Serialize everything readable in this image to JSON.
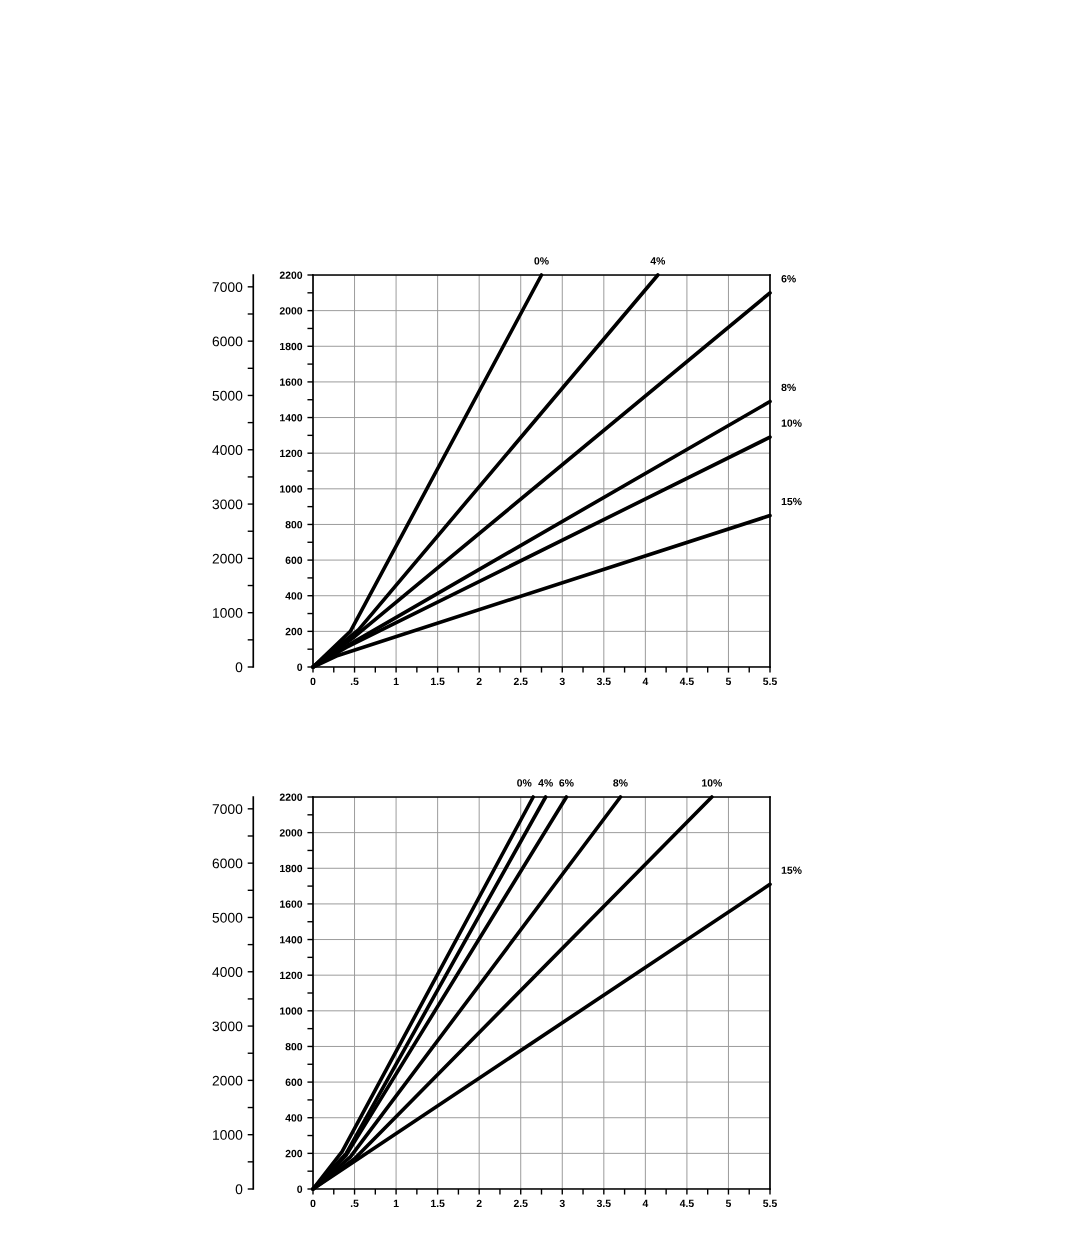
{
  "chart_data": [
    {
      "type": "line",
      "xlim": [
        0,
        5.5
      ],
      "ylim": [
        0,
        2200
      ],
      "y2lim": [
        0,
        7218
      ],
      "grid": true,
      "line_style": "solid",
      "marker": "none",
      "xticks": [
        0,
        {
          "value": 0.5,
          "label": ".5"
        },
        1,
        1.5,
        2,
        2.5,
        3,
        3.5,
        4,
        4.5,
        5,
        5.5
      ],
      "yticks": [
        0,
        200,
        400,
        600,
        800,
        1000,
        1200,
        1400,
        1600,
        1800,
        2000,
        2200
      ],
      "y2ticks": [
        0,
        1000,
        2000,
        3000,
        4000,
        5000,
        6000,
        7000
      ],
      "series": [
        {
          "name": "0%",
          "color": "#000000",
          "x": [
            0,
            0.45,
            2.75
          ],
          "values": [
            0,
            200,
            2200
          ]
        },
        {
          "name": "4%",
          "color": "#000000",
          "x": [
            0,
            0.55,
            4.15
          ],
          "values": [
            0,
            210,
            2200
          ]
        },
        {
          "name": "6%",
          "color": "#000000",
          "x": [
            0,
            0.5,
            5.5
          ],
          "values": [
            0,
            170,
            2100
          ]
        },
        {
          "name": "8%",
          "color": "#000000",
          "x": [
            0,
            0.45,
            5.5
          ],
          "values": [
            0,
            130,
            1490
          ]
        },
        {
          "name": "10%",
          "color": "#000000",
          "x": [
            0,
            0.4,
            5.5
          ],
          "values": [
            0,
            110,
            1290
          ]
        },
        {
          "name": "15%",
          "color": "#000000",
          "x": [
            0,
            0.3,
            5.5
          ],
          "values": [
            0,
            65,
            850
          ]
        }
      ]
    },
    {
      "type": "line",
      "xlim": [
        0,
        5.5
      ],
      "ylim": [
        0,
        2200
      ],
      "y2lim": [
        0,
        7218
      ],
      "grid": true,
      "line_style": "solid",
      "marker": "none",
      "xticks": [
        0,
        {
          "value": 0.5,
          "label": ".5"
        },
        1,
        1.5,
        2,
        2.5,
        3,
        3.5,
        4,
        4.5,
        5,
        5.5
      ],
      "yticks": [
        0,
        200,
        400,
        600,
        800,
        1000,
        1200,
        1400,
        1600,
        1800,
        2000,
        2200
      ],
      "y2ticks": [
        0,
        1000,
        2000,
        3000,
        4000,
        5000,
        6000,
        7000
      ],
      "series": [
        {
          "name": "0%",
          "color": "#000000",
          "x": [
            0,
            0.35,
            2.65
          ],
          "values": [
            0,
            210,
            2200
          ]
        },
        {
          "name": "4%",
          "color": "#000000",
          "x": [
            0,
            0.4,
            2.8
          ],
          "values": [
            0,
            200,
            2200
          ]
        },
        {
          "name": "6%",
          "color": "#000000",
          "x": [
            0,
            0.4,
            3.05
          ],
          "values": [
            0,
            190,
            2200
          ]
        },
        {
          "name": "8%",
          "color": "#000000",
          "x": [
            0,
            0.45,
            3.7
          ],
          "values": [
            0,
            180,
            2200
          ]
        },
        {
          "name": "10%",
          "color": "#000000",
          "x": [
            0,
            0.5,
            4.8
          ],
          "values": [
            0,
            170,
            2200
          ]
        },
        {
          "name": "15%",
          "color": "#000000",
          "x": [
            0,
            5.5
          ],
          "values": [
            0,
            1710
          ]
        }
      ]
    }
  ]
}
